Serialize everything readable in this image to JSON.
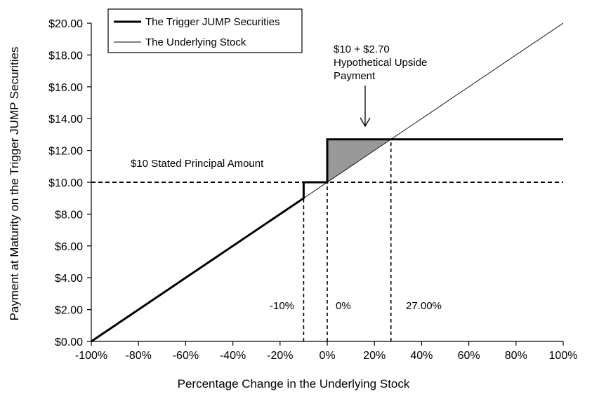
{
  "chart_data": {
    "type": "line",
    "title": "",
    "xlabel": "Percentage Change in the Underlying Stock",
    "ylabel": "Payment at Maturity on the Trigger JUMP Securities",
    "xlim": [
      -100,
      100
    ],
    "ylim": [
      0,
      20
    ],
    "x_ticks": [
      "-100%",
      "-80%",
      "-60%",
      "-40%",
      "-20%",
      "0%",
      "20%",
      "40%",
      "60%",
      "80%",
      "100%"
    ],
    "y_ticks": [
      "$0.00",
      "$2.00",
      "$4.00",
      "$6.00",
      "$8.00",
      "$10.00",
      "$12.00",
      "$14.00",
      "$16.00",
      "$18.00",
      "$20.00"
    ],
    "grid": false,
    "legend_position": "top-left",
    "series": [
      {
        "name": "The Trigger JUMP Securities",
        "style": "thick",
        "x": [
          -100,
          -10,
          -10,
          0,
          0,
          100
        ],
        "y": [
          0,
          9,
          10,
          10,
          12.7,
          12.7
        ]
      },
      {
        "name": "The Underlying Stock",
        "style": "thin",
        "x": [
          -100,
          100
        ],
        "y": [
          0,
          20
        ]
      }
    ],
    "reference_lines": [
      {
        "orientation": "horizontal",
        "y": 10,
        "label": "$10 Stated Principal Amount"
      },
      {
        "orientation": "vertical",
        "x": -10,
        "label": "-10%"
      },
      {
        "orientation": "vertical",
        "x": 0,
        "label": "0%"
      },
      {
        "orientation": "vertical",
        "x": 27,
        "label": "27.00%"
      }
    ],
    "shaded_region": {
      "description_points_x": [
        0,
        0,
        27
      ],
      "description_points_y": [
        10,
        12.7,
        12.7
      ],
      "color": "#999999"
    },
    "upside_annotation": {
      "lines": [
        "$10 + $2.70",
        "Hypothetical Upside",
        "Payment"
      ],
      "arrow_to_x": 16,
      "arrow_to_y": 12.7
    }
  }
}
